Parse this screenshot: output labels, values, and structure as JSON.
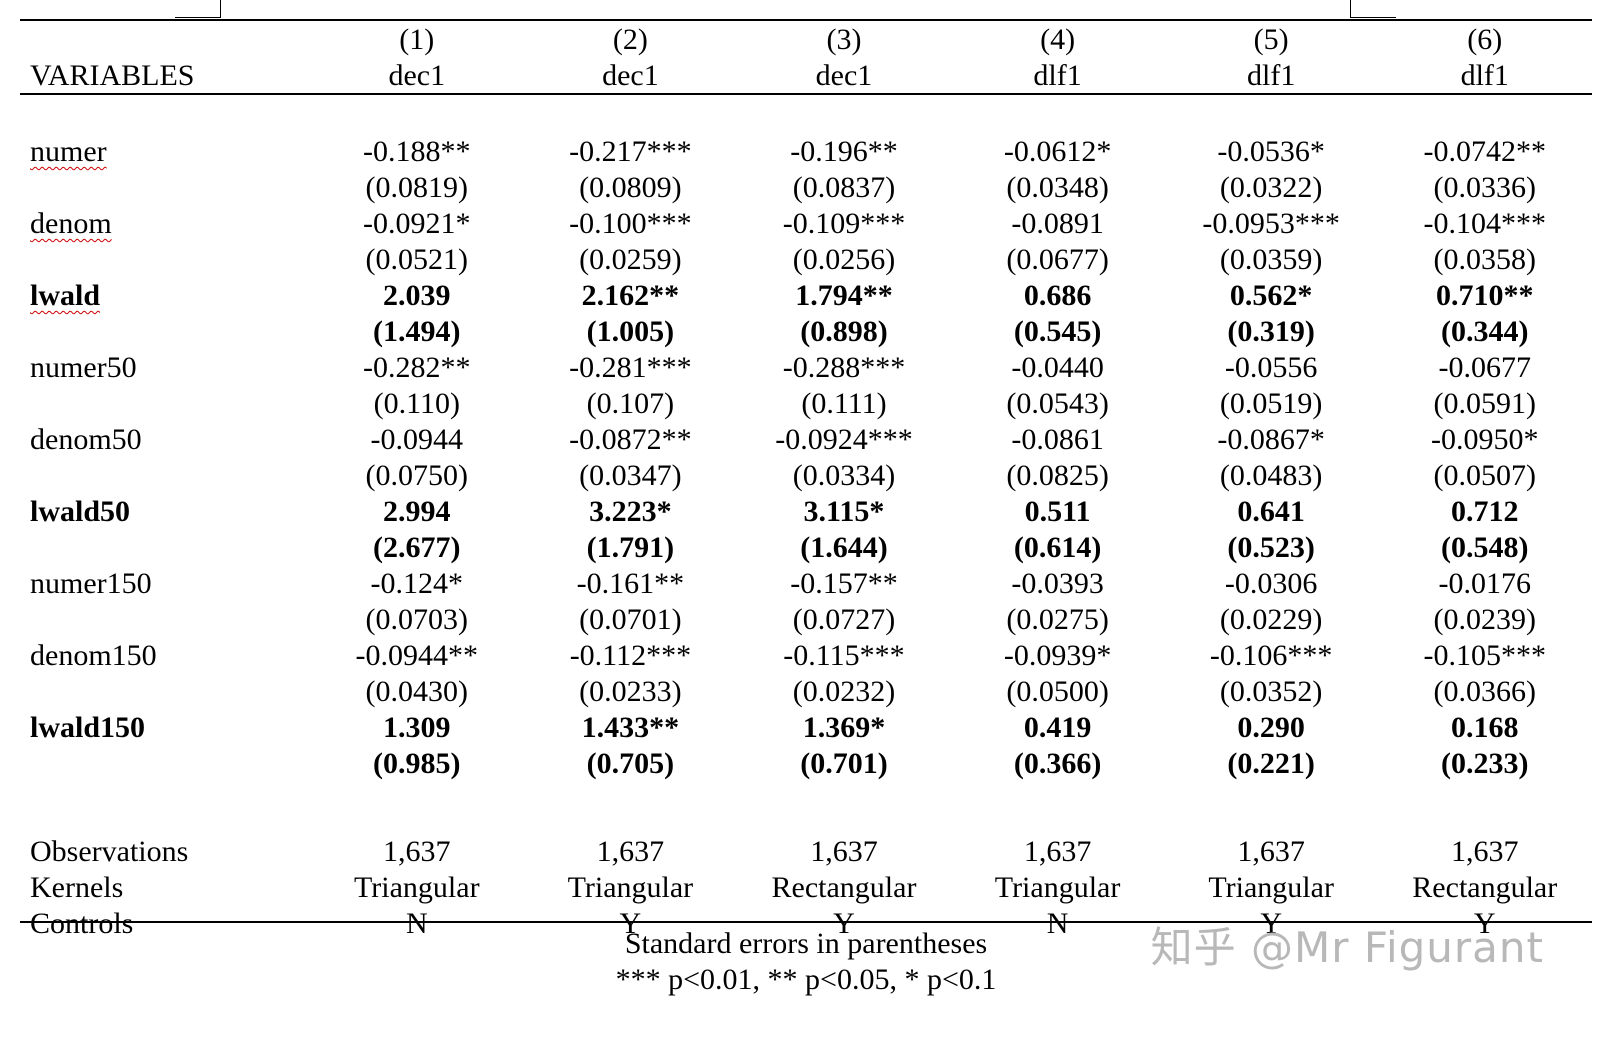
{
  "header": {
    "variables_label": "VARIABLES",
    "columns": [
      {
        "num": "(1)",
        "dep": "dec1"
      },
      {
        "num": "(2)",
        "dep": "dec1"
      },
      {
        "num": "(3)",
        "dep": "dec1"
      },
      {
        "num": "(4)",
        "dep": "dlf1"
      },
      {
        "num": "(5)",
        "dep": "dlf1"
      },
      {
        "num": "(6)",
        "dep": "dlf1"
      }
    ]
  },
  "rows": [
    {
      "label": "numer",
      "bold": false,
      "spell": true,
      "coef": [
        "-0.188**",
        "-0.217***",
        "-0.196**",
        "-0.0612*",
        "-0.0536*",
        "-0.0742**"
      ],
      "se": [
        "(0.0819)",
        "(0.0809)",
        "(0.0837)",
        "(0.0348)",
        "(0.0322)",
        "(0.0336)"
      ]
    },
    {
      "label": "denom",
      "bold": false,
      "spell": true,
      "coef": [
        "-0.0921*",
        "-0.100***",
        "-0.109***",
        "-0.0891",
        "-0.0953***",
        "-0.104***"
      ],
      "se": [
        "(0.0521)",
        "(0.0259)",
        "(0.0256)",
        "(0.0677)",
        "(0.0359)",
        "(0.0358)"
      ]
    },
    {
      "label": "lwald",
      "bold": true,
      "spell": true,
      "coef": [
        "2.039",
        "2.162**",
        "1.794**",
        "0.686",
        "0.562*",
        "0.710**"
      ],
      "se": [
        "(1.494)",
        "(1.005)",
        "(0.898)",
        "(0.545)",
        "(0.319)",
        "(0.344)"
      ]
    },
    {
      "label": "numer50",
      "bold": false,
      "spell": false,
      "coef": [
        "-0.282**",
        "-0.281***",
        "-0.288***",
        "-0.0440",
        "-0.0556",
        "-0.0677"
      ],
      "se": [
        "(0.110)",
        "(0.107)",
        "(0.111)",
        "(0.0543)",
        "(0.0519)",
        "(0.0591)"
      ]
    },
    {
      "label": "denom50",
      "bold": false,
      "spell": false,
      "coef": [
        "-0.0944",
        "-0.0872**",
        "-0.0924***",
        "-0.0861",
        "-0.0867*",
        "-0.0950*"
      ],
      "se": [
        "(0.0750)",
        "(0.0347)",
        "(0.0334)",
        "(0.0825)",
        "(0.0483)",
        "(0.0507)"
      ]
    },
    {
      "label": "lwald50",
      "bold": true,
      "spell": false,
      "coef": [
        "2.994",
        "3.223*",
        "3.115*",
        "0.511",
        "0.641",
        "0.712"
      ],
      "se": [
        "(2.677)",
        "(1.791)",
        "(1.644)",
        "(0.614)",
        "(0.523)",
        "(0.548)"
      ]
    },
    {
      "label": "numer150",
      "bold": false,
      "spell": false,
      "coef": [
        "-0.124*",
        "-0.161**",
        "-0.157**",
        "-0.0393",
        "-0.0306",
        "-0.0176"
      ],
      "se": [
        "(0.0703)",
        "(0.0701)",
        "(0.0727)",
        "(0.0275)",
        "(0.0229)",
        "(0.0239)"
      ]
    },
    {
      "label": "denom150",
      "bold": false,
      "spell": false,
      "coef": [
        "-0.0944**",
        "-0.112***",
        "-0.115***",
        "-0.0939*",
        "-0.106***",
        "-0.105***"
      ],
      "se": [
        "(0.0430)",
        "(0.0233)",
        "(0.0232)",
        "(0.0500)",
        "(0.0352)",
        "(0.0366)"
      ]
    },
    {
      "label": "lwald150",
      "bold": true,
      "spell": false,
      "coef": [
        "1.309",
        "1.433**",
        "1.369*",
        "0.419",
        "0.290",
        "0.168"
      ],
      "se": [
        "(0.985)",
        "(0.705)",
        "(0.701)",
        "(0.366)",
        "(0.221)",
        "(0.233)"
      ]
    }
  ],
  "footer_rows": [
    {
      "label": "Observations",
      "values": [
        "1,637",
        "1,637",
        "1,637",
        "1,637",
        "1,637",
        "1,637"
      ]
    },
    {
      "label": "Kernels",
      "values": [
        "Triangular",
        "Triangular",
        "Rectangular",
        "Triangular",
        "Triangular",
        "Rectangular"
      ]
    },
    {
      "label": "Controls",
      "values": [
        "N",
        "Y",
        "Y",
        "N",
        "Y",
        "Y"
      ]
    }
  ],
  "notes": {
    "line1": "Standard errors in parentheses",
    "line2": "*** p<0.01, ** p<0.05, * p<0.1"
  },
  "watermark": "知乎 @Mr Figurant"
}
